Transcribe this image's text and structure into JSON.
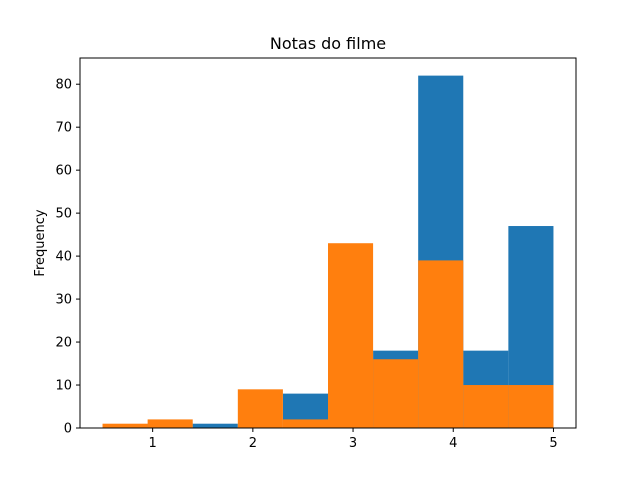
{
  "chart_data": {
    "type": "bar",
    "title": "Notas do filme",
    "xlabel": "",
    "ylabel": "Frequency",
    "xlim": [
      0.275,
      5.225
    ],
    "ylim": [
      0,
      86.1
    ],
    "bin_edges": [
      0.5,
      0.95,
      1.4,
      1.85,
      2.3,
      2.75,
      3.2,
      3.65,
      4.1,
      4.55,
      5.0
    ],
    "x_ticks": [
      1,
      2,
      3,
      4,
      5
    ],
    "y_ticks": [
      0,
      10,
      20,
      30,
      40,
      50,
      60,
      70,
      80
    ],
    "series": [
      {
        "color": "#1f77b4",
        "values": [
          0,
          1,
          1,
          0,
          8,
          0,
          18,
          82,
          18,
          47
        ]
      },
      {
        "color": "#ff7f0e",
        "values": [
          1,
          2,
          0,
          9,
          2,
          43,
          16,
          39,
          10,
          10
        ]
      }
    ],
    "grid": false,
    "legend": "none"
  }
}
